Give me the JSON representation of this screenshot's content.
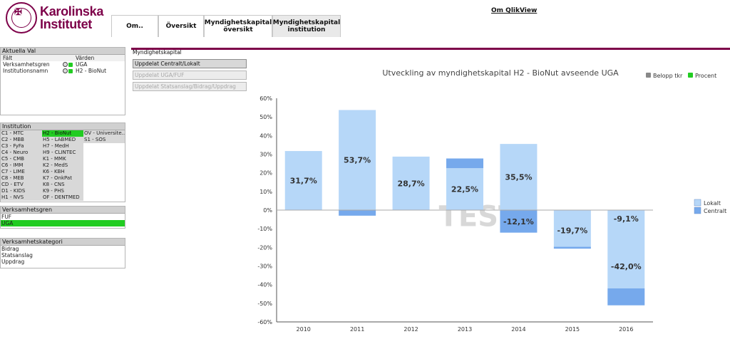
{
  "header": {
    "logo_line1": "Karolinska",
    "logo_line2": "Institutet",
    "about_link": "Om QlikView",
    "tabs": [
      "Om..",
      "Översikt",
      "Myndighetskapital översikt",
      "Myndighetskapital institution"
    ],
    "active_tab": 3
  },
  "current_selections": {
    "title": "Aktuella Val",
    "col_field": "Fält",
    "col_values": "Värden",
    "rows": [
      {
        "field": "Verksamhetsgren",
        "value": "UGA"
      },
      {
        "field": "Institutionsnamn",
        "value": "H2 - BioNut"
      }
    ]
  },
  "institution": {
    "title": "Institution",
    "columns": [
      [
        "C1 - MTC",
        "C2 - MBB",
        "C3 - FyFa",
        "C4 - Neuro",
        "C5 - CMB",
        "C6 - IMM",
        "C7 - LIME",
        "C8 - MEB",
        "CD - ETV",
        "D1 - KIDS",
        "H1 - NVS"
      ],
      [
        "H2 - BioNut",
        "H5 - LABMED",
        "H7 - MedH",
        "H9 - CLINTEC",
        "K1 - MMK",
        "K2 - MedS",
        "K6 - KBH",
        "K7 - OnkPat",
        "K8 - CNS",
        "K9 - PHS",
        "OF - DENTMED"
      ],
      [
        "OV - Universite...",
        "S1 - SÖS"
      ]
    ],
    "selected": "H2 - BioNut"
  },
  "verksamhetsgren": {
    "title": "Verksamhetsgren",
    "items": [
      "FUF",
      "UGA"
    ],
    "selected": "UGA"
  },
  "verksamhetskategori": {
    "title": "Verksamhetskategori",
    "items": [
      "Bidrag",
      "Statsanslag",
      "Uppdrag"
    ]
  },
  "section": {
    "title": "Myndighetskapital",
    "buttons": [
      {
        "label": "Uppdelat Centralt/Lokalt",
        "state": "active"
      },
      {
        "label": "Uppdelat UGA/FUF",
        "state": "dim"
      },
      {
        "label": "Uppdelat Statsanslag/Bidrag/Uppdrag",
        "state": "dim"
      }
    ]
  },
  "chart_toggles": {
    "belopp": "Belopp tkr",
    "procent": "Procent",
    "belopp_color": "#888888",
    "procent_color": "#22cc22"
  },
  "colors": {
    "brand": "#7d0049",
    "selected_green": "#22cc22",
    "lokalt": "#b6d7f8",
    "centralt": "#76a9ec"
  },
  "chart_data": {
    "type": "bar",
    "stacked": true,
    "title": "Utveckling av myndighetskapital H2 - BioNut avseende UGA",
    "categories": [
      "2010",
      "2011",
      "2012",
      "2013",
      "2014",
      "2015",
      "2016"
    ],
    "series": [
      {
        "name": "Lokalt",
        "values": [
          31.7,
          53.7,
          28.7,
          22.5,
          35.5,
          -19.7,
          -42.0
        ]
      },
      {
        "name": "Centralt",
        "values": [
          0.0,
          -3.0,
          0.0,
          5.2,
          -12.1,
          -1.0,
          -9.1
        ]
      }
    ],
    "data_labels": [
      {
        "category": "2010",
        "text": "31,7%",
        "series": "Lokalt"
      },
      {
        "category": "2011",
        "text": "53,7%",
        "series": "Lokalt"
      },
      {
        "category": "2012",
        "text": "28,7%",
        "series": "Lokalt"
      },
      {
        "category": "2013",
        "text": "22,5%",
        "series": "Lokalt"
      },
      {
        "category": "2014",
        "text": "35,5%",
        "series": "Lokalt"
      },
      {
        "category": "2014",
        "text": "-12,1%",
        "series": "Centralt"
      },
      {
        "category": "2015",
        "text": "-19,7%",
        "series": "Lokalt"
      },
      {
        "category": "2016",
        "text": "-9,1%",
        "series": "Centralt"
      },
      {
        "category": "2016",
        "text": "-42,0%",
        "series": "Lokalt"
      }
    ],
    "ylim": [
      -60,
      60
    ],
    "yticks": [
      60,
      50,
      40,
      30,
      20,
      10,
      0,
      -10,
      -20,
      -30,
      -40,
      -50,
      -60
    ],
    "ytick_labels": [
      "60%",
      "50%",
      "40%",
      "30%",
      "20%",
      "10%",
      "0%",
      "-10%",
      "-20%",
      "-30%",
      "-40%",
      "-50%",
      "-60%"
    ],
    "legend": [
      "Lokalt",
      "Centralt"
    ],
    "legend_position": "right",
    "watermark": "TEST",
    "grid": false
  }
}
